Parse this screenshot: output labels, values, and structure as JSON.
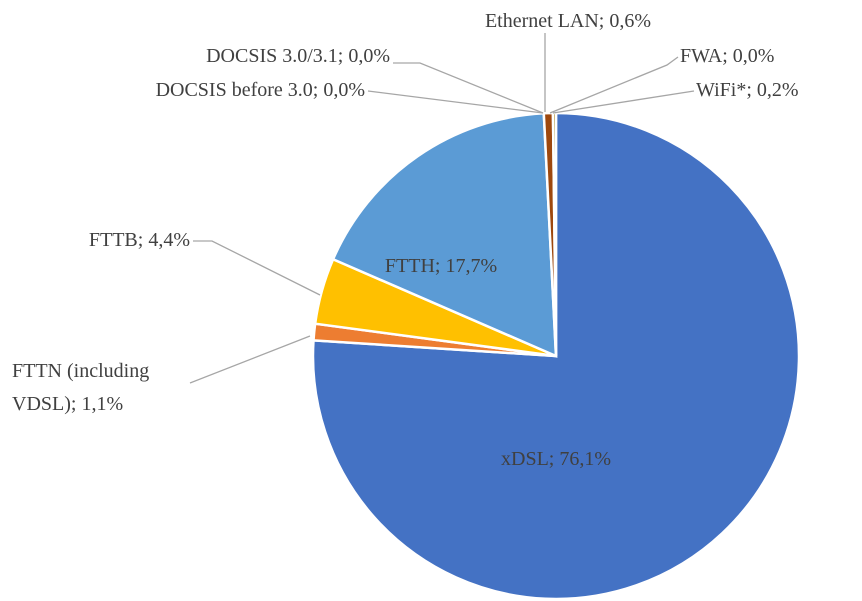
{
  "chart_data": {
    "type": "pie",
    "categories": [
      "xDSL",
      "FTTN (including VDSL)",
      "FTTB",
      "FTTH",
      "DOCSIS before 3.0",
      "DOCSIS 3.0/3.1",
      "Ethernet LAN",
      "FWA",
      "WiFi*"
    ],
    "values": [
      76.1,
      1.1,
      4.4,
      17.7,
      0.0,
      0.0,
      0.6,
      0.0,
      0.2
    ],
    "value_labels": [
      "xDSL; 76,1%",
      "FTTN (including\nVDSL); 1,1%",
      "FTTB; 4,4%",
      "FTTH; 17,7%",
      "DOCSIS before 3.0; 0,0%",
      "DOCSIS 3.0/3.1; 0,0%",
      "Ethernet LAN; 0,6%",
      "FWA; 0,0%",
      "WiFi*; 0,2%"
    ],
    "colors": [
      "#4472c4",
      "#ed7d31",
      "#ffc000",
      "#5b9bd5",
      "#70ad47",
      "#264478",
      "#9e480e",
      "#636363",
      "#997300"
    ]
  }
}
